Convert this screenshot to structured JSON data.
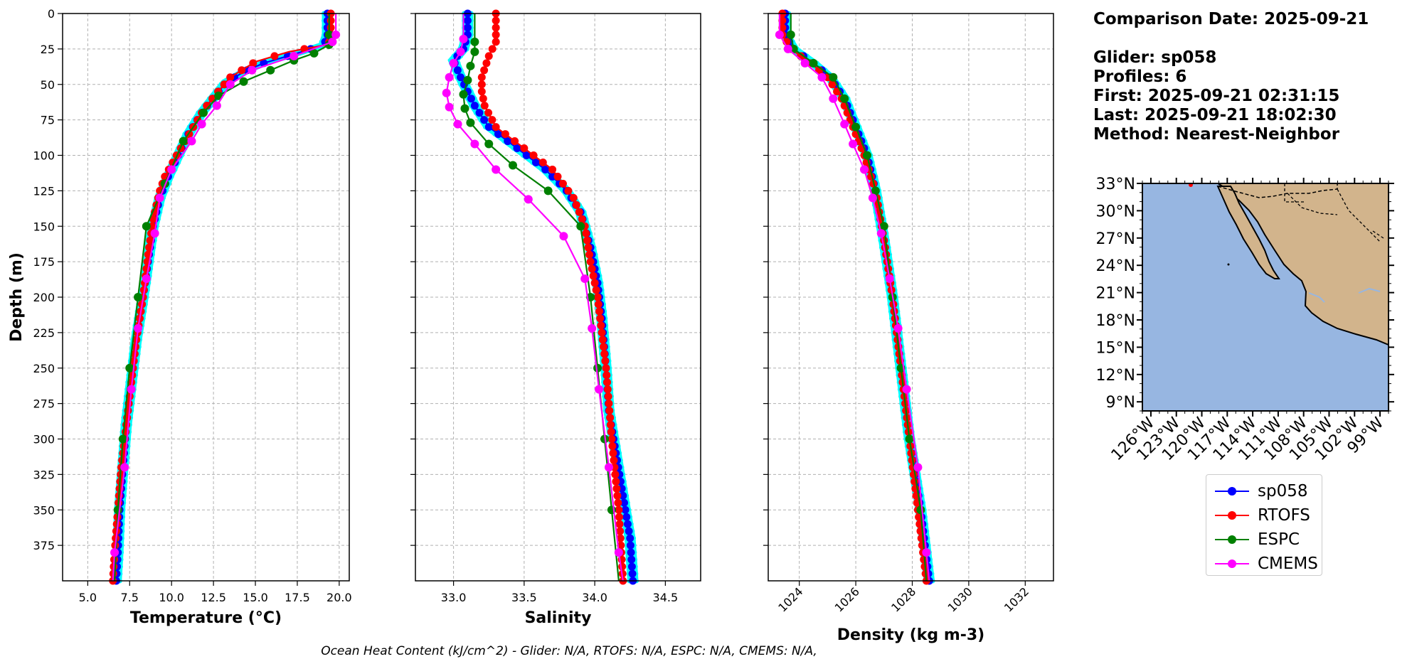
{
  "info": {
    "comparison_date": "Comparison Date: 2025-09-21",
    "glider": "Glider: sp058",
    "profiles": "Profiles: 6",
    "first": "First: 2025-09-21 02:31:15",
    "last": "Last: 2025-09-21 18:02:30",
    "method": "Method: Nearest-Neighbor"
  },
  "footer": "Ocean Heat Content (kJ/cm^2) - Glider: N/A,  RTOFS: N/A,  ESPC: N/A,  CMEMS: N/A,",
  "legend": [
    {
      "name": "sp058",
      "color": "#0000ff"
    },
    {
      "name": "RTOFS",
      "color": "#ff0000"
    },
    {
      "name": "ESPC",
      "color": "#008000"
    },
    {
      "name": "CMEMS",
      "color": "#ff00ff"
    }
  ],
  "colors": {
    "glider_profiles": "#00ffff",
    "land": "#d2b48c",
    "ocean": "#97b6e1"
  },
  "chart_data": [
    {
      "type": "line",
      "title": "",
      "xlabel": "Temperature (°C)",
      "ylabel": "Depth (m)",
      "xlim": [
        3.5,
        20.6
      ],
      "ylim": [
        400,
        0
      ],
      "y_inverted": true,
      "xticks": [
        "5.0",
        "7.5",
        "10.0",
        "12.5",
        "15.0",
        "17.5",
        "20.0"
      ],
      "yticks": [
        "0",
        "25",
        "50",
        "75",
        "100",
        "125",
        "150",
        "175",
        "200",
        "225",
        "250",
        "275",
        "300",
        "325",
        "350",
        "375"
      ],
      "grid": true,
      "series": [
        {
          "name": "sp058",
          "points": [
            [
              19.3,
              0
            ],
            [
              19.3,
              15
            ],
            [
              19.1,
              22
            ],
            [
              17.5,
              28
            ],
            [
              15.5,
              35
            ],
            [
              14.5,
              40
            ],
            [
              13.3,
              48
            ],
            [
              12.6,
              58
            ],
            [
              11.8,
              70
            ],
            [
              11.0,
              85
            ],
            [
              10.4,
              100
            ],
            [
              9.8,
              115
            ],
            [
              9.3,
              130
            ],
            [
              8.9,
              150
            ],
            [
              8.6,
              175
            ],
            [
              8.3,
              200
            ],
            [
              7.9,
              230
            ],
            [
              7.6,
              260
            ],
            [
              7.3,
              290
            ],
            [
              7.1,
              320
            ],
            [
              6.9,
              350
            ],
            [
              6.8,
              380
            ],
            [
              6.7,
              400
            ]
          ]
        },
        {
          "name": "RTOFS",
          "points": [
            [
              19.5,
              0
            ],
            [
              19.5,
              18
            ],
            [
              19.3,
              22
            ],
            [
              17.0,
              27
            ],
            [
              15.0,
              34
            ],
            [
              13.5,
              45
            ],
            [
              12.7,
              56
            ],
            [
              11.9,
              68
            ],
            [
              11.1,
              84
            ],
            [
              10.3,
              100
            ],
            [
              9.6,
              115
            ],
            [
              9.3,
              125
            ],
            [
              8.9,
              145
            ],
            [
              8.6,
              170
            ],
            [
              8.3,
              200
            ],
            [
              7.9,
              230
            ],
            [
              7.6,
              260
            ],
            [
              7.3,
              290
            ],
            [
              7.0,
              320
            ],
            [
              6.8,
              350
            ],
            [
              6.6,
              380
            ],
            [
              6.5,
              400
            ]
          ]
        },
        {
          "name": "ESPC",
          "points": [
            [
              19.4,
              0
            ],
            [
              19.4,
              15
            ],
            [
              19.4,
              22
            ],
            [
              18.5,
              28
            ],
            [
              17.3,
              33
            ],
            [
              15.9,
              40
            ],
            [
              14.3,
              48
            ],
            [
              12.8,
              58
            ],
            [
              11.9,
              70
            ],
            [
              10.7,
              90
            ],
            [
              9.6,
              120
            ],
            [
              8.5,
              150
            ],
            [
              8.0,
              200
            ],
            [
              7.5,
              250
            ],
            [
              7.1,
              300
            ],
            [
              6.8,
              350
            ],
            [
              6.6,
              400
            ]
          ]
        },
        {
          "name": "CMEMS",
          "points": [
            [
              19.8,
              0
            ],
            [
              19.8,
              15
            ],
            [
              19.6,
              20
            ],
            [
              17.3,
              30
            ],
            [
              14.8,
              40
            ],
            [
              13.5,
              50
            ],
            [
              12.7,
              65
            ],
            [
              11.8,
              78
            ],
            [
              11.2,
              90
            ],
            [
              10.0,
              110
            ],
            [
              9.3,
              130
            ],
            [
              9.0,
              155
            ],
            [
              8.5,
              187
            ],
            [
              8.0,
              222
            ],
            [
              7.6,
              265
            ],
            [
              7.2,
              320
            ],
            [
              6.6,
              380
            ],
            [
              6.5,
              400
            ]
          ]
        }
      ]
    },
    {
      "type": "line",
      "title": "",
      "xlabel": "Salinity",
      "ylabel": "",
      "xlim": [
        32.73,
        34.75
      ],
      "ylim": [
        400,
        0
      ],
      "y_inverted": true,
      "xticks": [
        "33.0",
        "33.5",
        "34.0",
        "34.5"
      ],
      "grid": true,
      "series": [
        {
          "name": "sp058",
          "points": [
            [
              33.1,
              0
            ],
            [
              33.1,
              15
            ],
            [
              33.07,
              25
            ],
            [
              33.0,
              33
            ],
            [
              33.05,
              45
            ],
            [
              33.1,
              55
            ],
            [
              33.15,
              65
            ],
            [
              33.25,
              80
            ],
            [
              33.45,
              95
            ],
            [
              33.65,
              110
            ],
            [
              33.8,
              125
            ],
            [
              33.9,
              140
            ],
            [
              33.97,
              165
            ],
            [
              34.02,
              190
            ],
            [
              34.05,
              215
            ],
            [
              34.08,
              250
            ],
            [
              34.1,
              280
            ],
            [
              34.15,
              310
            ],
            [
              34.2,
              340
            ],
            [
              34.25,
              370
            ],
            [
              34.27,
              400
            ]
          ]
        },
        {
          "name": "RTOFS",
          "points": [
            [
              33.3,
              0
            ],
            [
              33.3,
              20
            ],
            [
              33.25,
              30
            ],
            [
              33.2,
              45
            ],
            [
              33.2,
              55
            ],
            [
              33.22,
              65
            ],
            [
              33.3,
              80
            ],
            [
              33.5,
              95
            ],
            [
              33.7,
              110
            ],
            [
              33.85,
              130
            ],
            [
              33.93,
              150
            ],
            [
              33.97,
              175
            ],
            [
              34.02,
              200
            ],
            [
              34.08,
              250
            ],
            [
              34.12,
              300
            ],
            [
              34.17,
              350
            ],
            [
              34.2,
              400
            ]
          ]
        },
        {
          "name": "ESPC",
          "points": [
            [
              33.15,
              0
            ],
            [
              33.15,
              20
            ],
            [
              33.15,
              27
            ],
            [
              33.12,
              37
            ],
            [
              33.1,
              47
            ],
            [
              33.07,
              57
            ],
            [
              33.08,
              67
            ],
            [
              33.12,
              77
            ],
            [
              33.25,
              92
            ],
            [
              33.42,
              107
            ],
            [
              33.67,
              125
            ],
            [
              33.9,
              150
            ],
            [
              33.97,
              200
            ],
            [
              34.02,
              250
            ],
            [
              34.07,
              300
            ],
            [
              34.12,
              350
            ],
            [
              34.17,
              400
            ]
          ]
        },
        {
          "name": "CMEMS",
          "points": [
            [
              33.07,
              0
            ],
            [
              33.07,
              18
            ],
            [
              33.05,
              27
            ],
            [
              33.0,
              35
            ],
            [
              32.97,
              45
            ],
            [
              32.95,
              56
            ],
            [
              32.97,
              66
            ],
            [
              33.03,
              78
            ],
            [
              33.15,
              92
            ],
            [
              33.3,
              110
            ],
            [
              33.53,
              131
            ],
            [
              33.78,
              157
            ],
            [
              33.93,
              187
            ],
            [
              33.98,
              222
            ],
            [
              34.03,
              265
            ],
            [
              34.1,
              320
            ],
            [
              34.17,
              380
            ],
            [
              34.2,
              400
            ]
          ]
        }
      ]
    },
    {
      "type": "line",
      "title": "",
      "xlabel": "Density (kg m-3)",
      "ylabel": "",
      "xlim": [
        1022.9,
        1033.0
      ],
      "ylim": [
        400,
        0
      ],
      "y_inverted": true,
      "xticks": [
        "1024",
        "1026",
        "1028",
        "1030",
        "1032"
      ],
      "grid": true,
      "series": [
        {
          "name": "sp058",
          "points": [
            [
              1023.5,
              0
            ],
            [
              1023.5,
              15
            ],
            [
              1023.8,
              25
            ],
            [
              1024.5,
              35
            ],
            [
              1025.1,
              45
            ],
            [
              1025.6,
              60
            ],
            [
              1026.0,
              80
            ],
            [
              1026.4,
              100
            ],
            [
              1026.7,
              125
            ],
            [
              1027.0,
              160
            ],
            [
              1027.3,
              200
            ],
            [
              1027.6,
              250
            ],
            [
              1027.9,
              300
            ],
            [
              1028.3,
              350
            ],
            [
              1028.6,
              400
            ]
          ]
        },
        {
          "name": "RTOFS",
          "points": [
            [
              1023.4,
              0
            ],
            [
              1023.4,
              15
            ],
            [
              1023.7,
              25
            ],
            [
              1024.4,
              35
            ],
            [
              1025.0,
              45
            ],
            [
              1025.5,
              60
            ],
            [
              1025.9,
              80
            ],
            [
              1026.3,
              100
            ],
            [
              1026.7,
              125
            ],
            [
              1027.0,
              160
            ],
            [
              1027.3,
              200
            ],
            [
              1027.6,
              250
            ],
            [
              1027.9,
              300
            ],
            [
              1028.2,
              350
            ],
            [
              1028.5,
              400
            ]
          ]
        },
        {
          "name": "ESPC",
          "points": [
            [
              1023.7,
              0
            ],
            [
              1023.7,
              15
            ],
            [
              1023.8,
              25
            ],
            [
              1024.5,
              35
            ],
            [
              1025.2,
              45
            ],
            [
              1025.6,
              60
            ],
            [
              1026.0,
              80
            ],
            [
              1026.4,
              100
            ],
            [
              1026.7,
              125
            ],
            [
              1027.0,
              150
            ],
            [
              1027.3,
              200
            ],
            [
              1027.6,
              250
            ],
            [
              1027.9,
              300
            ],
            [
              1028.3,
              350
            ],
            [
              1028.5,
              400
            ]
          ]
        },
        {
          "name": "CMEMS",
          "points": [
            [
              1023.3,
              0
            ],
            [
              1023.3,
              15
            ],
            [
              1023.6,
              25
            ],
            [
              1024.2,
              35
            ],
            [
              1024.8,
              45
            ],
            [
              1025.2,
              60
            ],
            [
              1025.6,
              78
            ],
            [
              1025.9,
              92
            ],
            [
              1026.3,
              110
            ],
            [
              1026.6,
              130
            ],
            [
              1026.9,
              155
            ],
            [
              1027.2,
              187
            ],
            [
              1027.5,
              222
            ],
            [
              1027.8,
              265
            ],
            [
              1028.2,
              320
            ],
            [
              1028.5,
              380
            ],
            [
              1028.6,
              400
            ]
          ]
        }
      ]
    }
  ],
  "map": {
    "lat_labels": [
      "33°N",
      "30°N",
      "27°N",
      "24°N",
      "21°N",
      "18°N",
      "15°N",
      "12°N",
      "9°N"
    ],
    "lon_labels": [
      "126°W",
      "123°W",
      "120°W",
      "117°W",
      "114°W",
      "111°W",
      "108°W",
      "105°W",
      "102°W",
      "99°W"
    ],
    "lat_range": [
      8,
      33
    ],
    "lon_range": [
      -127,
      -98
    ]
  }
}
